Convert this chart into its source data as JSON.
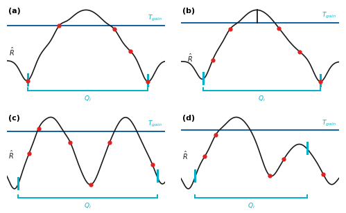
{
  "cyan_color": "#00b0c8",
  "red_color": "#dd2222",
  "black_color": "#1a1a1a",
  "blue_color": "#1060a0",
  "T_gain_label": "T$_{gain}$",
  "Q_label": "Q$_{i}$",
  "R_hat_label": "$\\hat{R}$"
}
